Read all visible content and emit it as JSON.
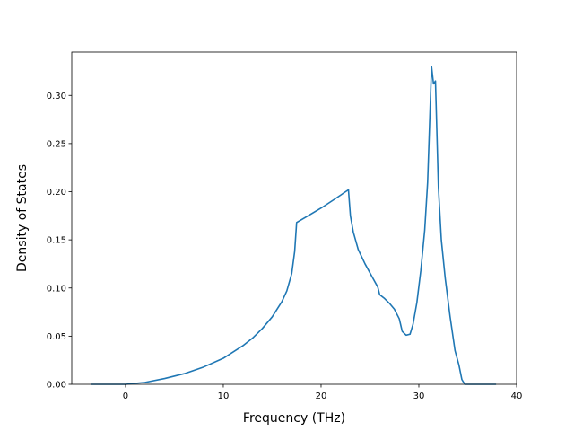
{
  "chart_data": {
    "type": "line",
    "title": "",
    "xlabel": "Frequency (THz)",
    "ylabel": "Density of States",
    "xlim": [
      -5.5,
      40
    ],
    "ylim": [
      0,
      0.345
    ],
    "xticks": [
      0,
      10,
      20,
      30,
      40
    ],
    "xtick_labels": [
      "0",
      "10",
      "20",
      "30",
      "40"
    ],
    "yticks": [
      0,
      0.05,
      0.1,
      0.15,
      0.2,
      0.25,
      0.3
    ],
    "ytick_labels": [
      "0.00",
      "0.05",
      "0.10",
      "0.15",
      "0.20",
      "0.25",
      "0.30"
    ],
    "grid": false,
    "legend": "none",
    "series": [
      {
        "color": "#1f77b4",
        "x": [
          -3.5,
          0,
          2,
          4,
          6,
          8,
          10,
          12,
          13,
          14,
          15,
          16,
          16.5,
          17,
          17.3,
          17.5,
          18.5,
          20,
          21.5,
          22.8,
          23.0,
          23.3,
          23.8,
          24.5,
          25.2,
          25.8,
          26.0,
          26.5,
          27.0,
          27.5,
          28.0,
          28.3,
          28.7,
          29.1,
          29.4,
          29.8,
          30.2,
          30.6,
          30.9,
          31.1,
          31.3,
          31.5,
          31.7,
          32.0,
          32.3,
          32.7,
          33.2,
          33.7,
          34.1,
          34.4,
          34.7,
          35.5,
          37.9
        ],
        "y": [
          0,
          0,
          0.002,
          0.006,
          0.011,
          0.018,
          0.027,
          0.04,
          0.048,
          0.058,
          0.07,
          0.086,
          0.097,
          0.115,
          0.138,
          0.168,
          0.174,
          0.183,
          0.193,
          0.202,
          0.175,
          0.158,
          0.14,
          0.125,
          0.112,
          0.101,
          0.093,
          0.089,
          0.084,
          0.078,
          0.068,
          0.055,
          0.051,
          0.052,
          0.062,
          0.085,
          0.118,
          0.16,
          0.21,
          0.27,
          0.33,
          0.312,
          0.315,
          0.205,
          0.15,
          0.11,
          0.07,
          0.035,
          0.02,
          0.005,
          0,
          0,
          0
        ]
      }
    ]
  }
}
